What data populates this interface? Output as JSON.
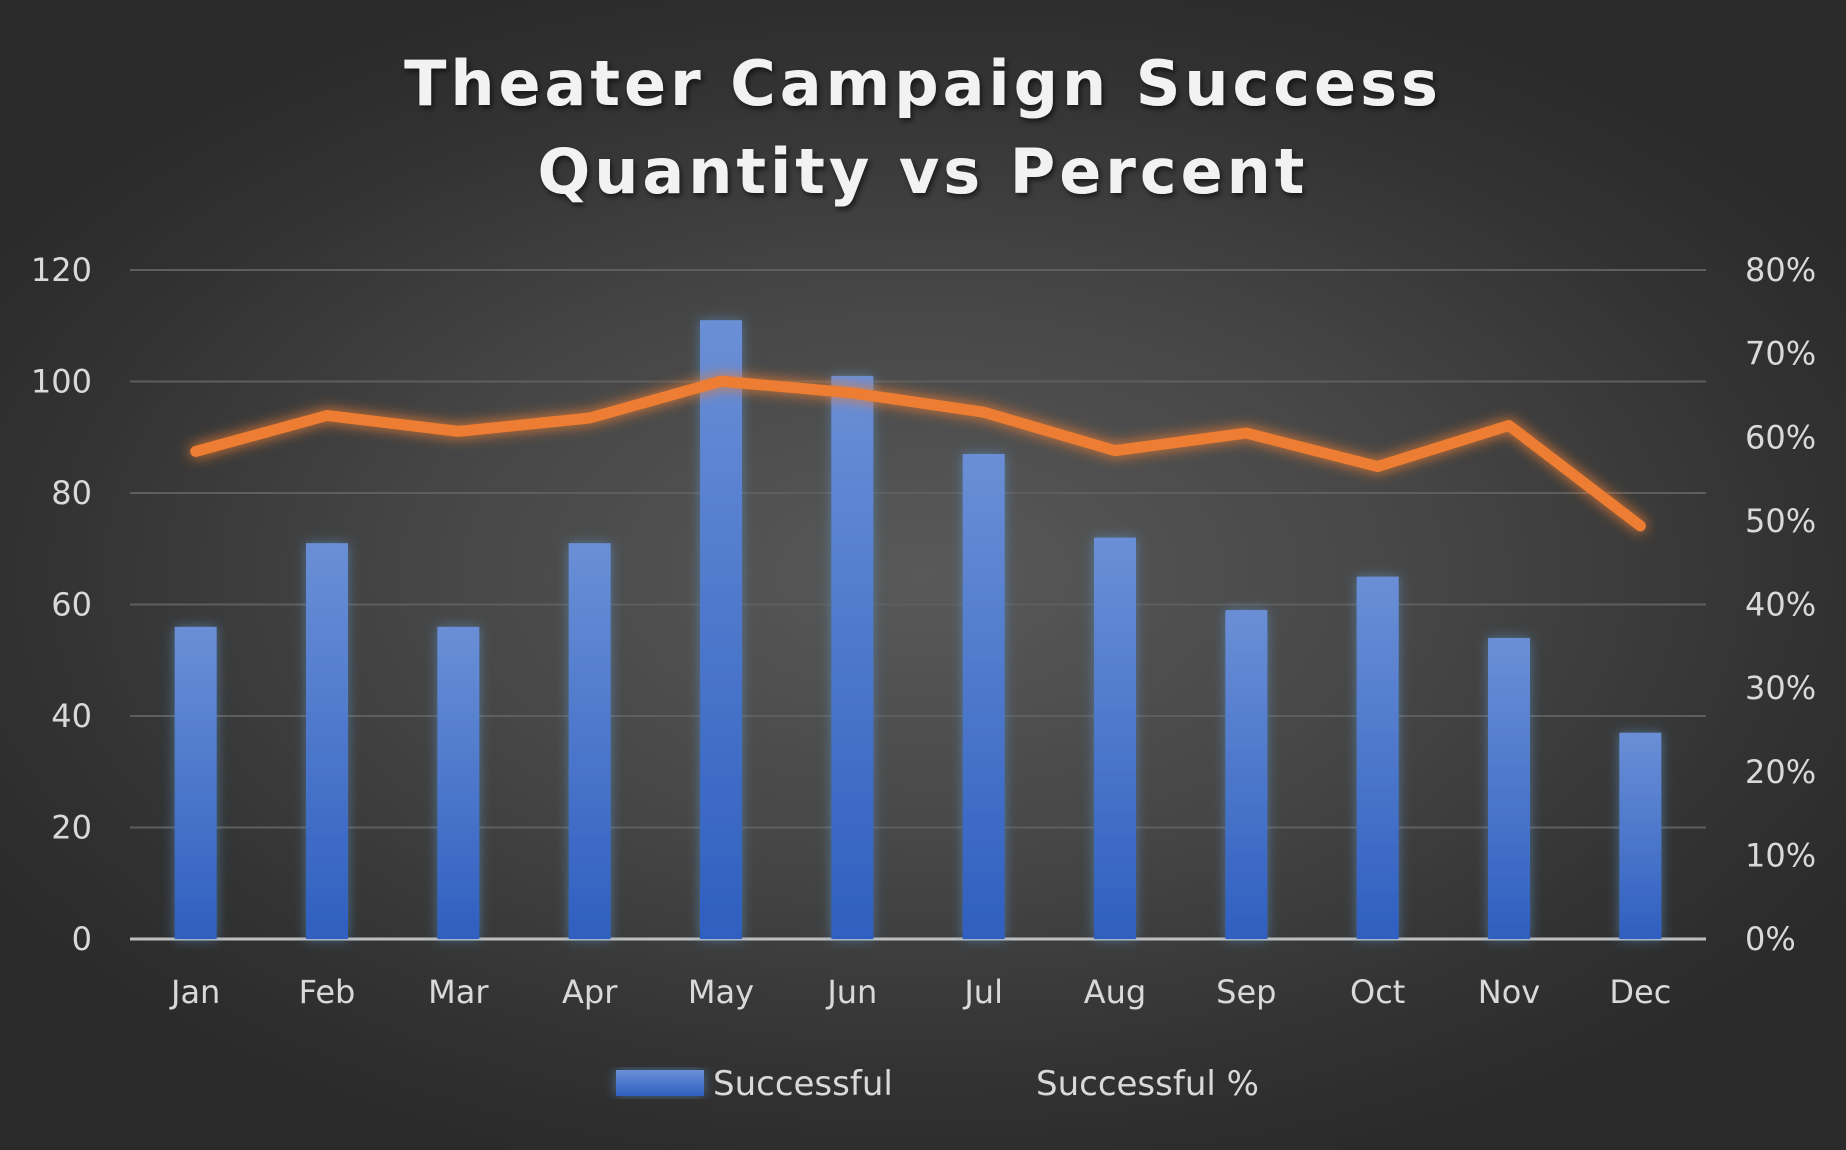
{
  "chart_data": {
    "type": "bar",
    "title_lines": [
      "Theater Campaign Success",
      "Quantity vs Percent"
    ],
    "categories": [
      "Jan",
      "Feb",
      "Mar",
      "Apr",
      "May",
      "Jun",
      "Jul",
      "Aug",
      "Sep",
      "Oct",
      "Nov",
      "Dec"
    ],
    "series": [
      {
        "name": "Successful",
        "type": "bar",
        "axis": "left",
        "color": "#4472c4",
        "values": [
          56,
          71,
          56,
          71,
          111,
          101,
          87,
          72,
          59,
          65,
          54,
          37
        ]
      },
      {
        "name": "Successful %",
        "type": "line",
        "axis": "right",
        "color": "#ed7d31",
        "values": [
          0.583,
          0.626,
          0.607,
          0.623,
          0.667,
          0.653,
          0.63,
          0.584,
          0.605,
          0.565,
          0.614,
          0.494
        ]
      }
    ],
    "y_left": {
      "min": 0,
      "max": 120,
      "ticks": [
        0,
        20,
        40,
        60,
        80,
        100,
        120
      ],
      "tick_labels": [
        "0",
        "20",
        "40",
        "60",
        "80",
        "100",
        "120"
      ]
    },
    "y_right": {
      "min": 0,
      "max": 0.8,
      "ticks": [
        0,
        0.1,
        0.2,
        0.3,
        0.4,
        0.5,
        0.6,
        0.7,
        0.8
      ],
      "tick_labels": [
        "0%",
        "10%",
        "20%",
        "30%",
        "40%",
        "50%",
        "60%",
        "70%",
        "80%"
      ]
    },
    "grid": true,
    "legend": "bottom",
    "background": "#444444",
    "gridline_color": "#5e5e5e",
    "text_color": "#d9d9d9"
  }
}
